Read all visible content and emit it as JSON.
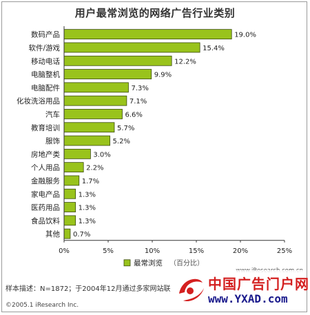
{
  "chart_data": {
    "type": "bar",
    "orientation": "horizontal",
    "title": "用户最常浏览的网络广告行业类别",
    "categories": [
      "数码产品",
      "软件/游戏",
      "移动电话",
      "电脑整机",
      "电脑配件",
      "化妆洗浴用品",
      "汽车",
      "教育培训",
      "服饰",
      "房地产类",
      "个人用品",
      "金融服务",
      "家电产品",
      "医药用品",
      "食品饮料",
      "其他"
    ],
    "series": [
      {
        "name": "最常浏览",
        "values": [
          19.0,
          15.4,
          12.2,
          9.9,
          7.3,
          7.1,
          6.6,
          5.7,
          5.2,
          3.0,
          2.2,
          1.7,
          1.3,
          1.3,
          1.3,
          0.7
        ]
      }
    ],
    "value_labels": [
      "19.0%",
      "15.4%",
      "12.2%",
      "9.9%",
      "7.3%",
      "7.1%",
      "6.6%",
      "5.7%",
      "5.2%",
      "3.0%",
      "2.2%",
      "1.7%",
      "1.3%",
      "1.3%",
      "1.3%",
      "0.7%"
    ],
    "xlim": [
      0,
      25
    ],
    "xticks": [
      "0%",
      "5%",
      "10%",
      "15%",
      "20%",
      "25%"
    ],
    "legend": {
      "label": "最常浏览",
      "note": "（百分比）",
      "position": "bottom"
    },
    "grid": false,
    "bar_color": "#99c31c"
  },
  "footer": {
    "sample": "样本描述：N=1872；于2004年12月通过多家网站联",
    "copyright": "©2005.1 iResearch Inc.",
    "source": "www.iResearch.com.cn"
  },
  "watermark": {
    "text_cn": "中国广告门户网",
    "url": "www.YXAD.com"
  }
}
